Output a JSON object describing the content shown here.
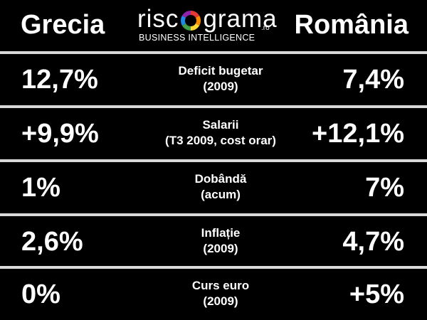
{
  "header": {
    "left_country": "Grecia",
    "right_country": "România",
    "logo": {
      "word_start": "risc",
      "word_end": "grama",
      "tld": ".ro",
      "tagline": "BUSINESS INTELLIGENCE",
      "ring_colors": [
        "#e53935",
        "#fb8c00",
        "#fdd835",
        "#43a047",
        "#1e88e5",
        "#8e24aa"
      ]
    }
  },
  "rows": [
    {
      "label_line1": "Deficit bugetar",
      "label_line2": "(2009)",
      "left_value": "12,7%",
      "right_value": "7,4%"
    },
    {
      "label_line1": "Salarii",
      "label_line2": "(T3 2009, cost orar)",
      "left_value": "+9,9%",
      "right_value": "+12,1%"
    },
    {
      "label_line1": "Dobândă",
      "label_line2": "(acum)",
      "left_value": "1%",
      "right_value": "7%"
    },
    {
      "label_line1": "Inflație",
      "label_line2": "(2009)",
      "left_value": "2,6%",
      "right_value": "4,7%"
    },
    {
      "label_line1": "Curs euro",
      "label_line2": "(2009)",
      "left_value": "0%",
      "right_value": "+5%"
    }
  ],
  "colors": {
    "background": "#000000",
    "text": "#ffffff",
    "divider": "#d9d9d9"
  }
}
